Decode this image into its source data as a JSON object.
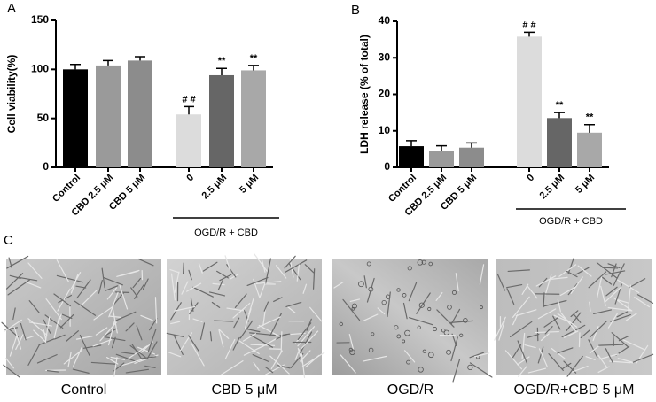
{
  "chart_data": [
    {
      "type": "bar",
      "panel": "A",
      "y_label": "Cell viability(%)",
      "categories": [
        "Control",
        "CBD 2.5 μM",
        "CBD 5 μM",
        "0",
        "2.5 μM",
        "5 μM"
      ],
      "values": [
        100,
        104,
        109,
        54,
        94,
        99
      ],
      "errors": [
        5,
        5,
        4,
        8,
        7,
        5
      ],
      "colors": [
        "#000000",
        "#9a9a9a",
        "#8c8c8c",
        "#dcdcdc",
        "#666666",
        "#a8a8a8"
      ],
      "bar_labels": [
        null,
        null,
        null,
        "# #",
        "**",
        "**"
      ],
      "group_label": "OGD/R + CBD",
      "ylim": [
        0,
        150
      ],
      "yticks": [
        0,
        50,
        100,
        150
      ]
    },
    {
      "type": "bar",
      "panel": "B",
      "y_label": "LDH release (% of total)",
      "categories": [
        "Control",
        "CBD 2.5 μM",
        "CBD 5 μM",
        "0",
        "2.5 μM",
        "5 μM"
      ],
      "values": [
        5.8,
        4.6,
        5.4,
        35.8,
        13.5,
        9.5
      ],
      "errors": [
        1.5,
        1.3,
        1.3,
        1.2,
        1.5,
        2.2
      ],
      "colors": [
        "#000000",
        "#9a9a9a",
        "#8c8c8c",
        "#dcdcdc",
        "#666666",
        "#a8a8a8"
      ],
      "bar_labels": [
        null,
        null,
        null,
        "# #",
        "**",
        "**"
      ],
      "group_label": "OGD/R + CBD",
      "ylim": [
        0,
        40
      ],
      "yticks": [
        0,
        10,
        20,
        30,
        40
      ]
    }
  ],
  "panel_c": {
    "panel": "C",
    "captions": [
      "Control",
      "CBD 5 μM",
      "OGD/R",
      "OGD/R+CBD 5 μM"
    ]
  }
}
